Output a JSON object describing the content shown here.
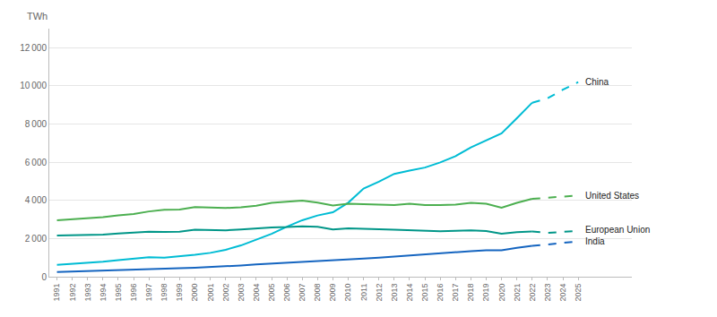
{
  "chart_data": {
    "type": "line",
    "ylabel": "TWh",
    "x": [
      1991,
      1992,
      1993,
      1994,
      1995,
      1996,
      1997,
      1998,
      1999,
      2000,
      2001,
      2002,
      2003,
      2004,
      2005,
      2006,
      2007,
      2008,
      2009,
      2010,
      2011,
      2012,
      2013,
      2014,
      2015,
      2016,
      2017,
      2018,
      2019,
      2020,
      2021,
      2022,
      2023,
      2024,
      2025
    ],
    "xlim": [
      1990.5,
      2028.5
    ],
    "xticks": [
      1991,
      1992,
      1993,
      1994,
      1995,
      1996,
      1997,
      1998,
      1999,
      2000,
      2001,
      2002,
      2003,
      2004,
      2005,
      2006,
      2007,
      2008,
      2009,
      2010,
      2011,
      2012,
      2013,
      2014,
      2015,
      2016,
      2017,
      2018,
      2019,
      2020,
      2021,
      2022,
      2023,
      2024,
      2025
    ],
    "ylim": [
      0,
      13000
    ],
    "yticks": [
      0,
      {
        "value": 2000,
        "label": "2 000"
      },
      {
        "value": 4000,
        "label": "4 000"
      },
      {
        "value": 6000,
        "label": "6 000"
      },
      {
        "value": 8000,
        "label": "8 000"
      },
      {
        "value": 10000,
        "label": "10 000"
      },
      {
        "value": 12000,
        "label": "12 000"
      }
    ],
    "grid": "y",
    "series": [
      {
        "name": "China",
        "color": "#00bcd4",
        "solid_until": 2022,
        "values": [
          620,
          670,
          720,
          790,
          870,
          950,
          1020,
          1000,
          1060,
          1150,
          1250,
          1410,
          1640,
          1950,
          2250,
          2620,
          2960,
          3210,
          3380,
          3880,
          4620,
          4980,
          5390,
          5560,
          5720,
          5990,
          6320,
          6780,
          7140,
          7510,
          8310,
          9120,
          9350,
          9800,
          10200
        ]
      },
      {
        "name": "United States",
        "color": "#4caf50",
        "solid_until": 2022,
        "values": [
          2960,
          3020,
          3050,
          3120,
          3210,
          3280,
          3420,
          3510,
          3520,
          3650,
          3620,
          3600,
          3640,
          3720,
          3870,
          3920,
          3990,
          3880,
          3730,
          3830,
          3820,
          3780,
          3760,
          3830,
          3760,
          3750,
          3780,
          3870,
          3820,
          3620,
          3870,
          4080,
          4150,
          4200,
          4250
        ]
      },
      {
        "name": "European Union",
        "color": "#009688",
        "solid_until": 2022,
        "values": [
          2160,
          2170,
          2180,
          2200,
          2260,
          2320,
          2360,
          2350,
          2360,
          2460,
          2440,
          2430,
          2470,
          2540,
          2580,
          2600,
          2640,
          2620,
          2480,
          2540,
          2530,
          2490,
          2460,
          2440,
          2400,
          2380,
          2400,
          2430,
          2390,
          2250,
          2340,
          2370,
          2300,
          2350,
          2400
        ]
      },
      {
        "name": "India",
        "color": "#1565c0",
        "solid_until": 2022,
        "values": [
          250,
          270,
          290,
          310,
          340,
          370,
          400,
          410,
          440,
          470,
          500,
          540,
          590,
          640,
          680,
          720,
          780,
          830,
          860,
          900,
          950,
          1000,
          1060,
          1100,
          1160,
          1210,
          1280,
          1340,
          1380,
          1380,
          1510,
          1620,
          1680,
          1780,
          1850
        ]
      }
    ]
  }
}
